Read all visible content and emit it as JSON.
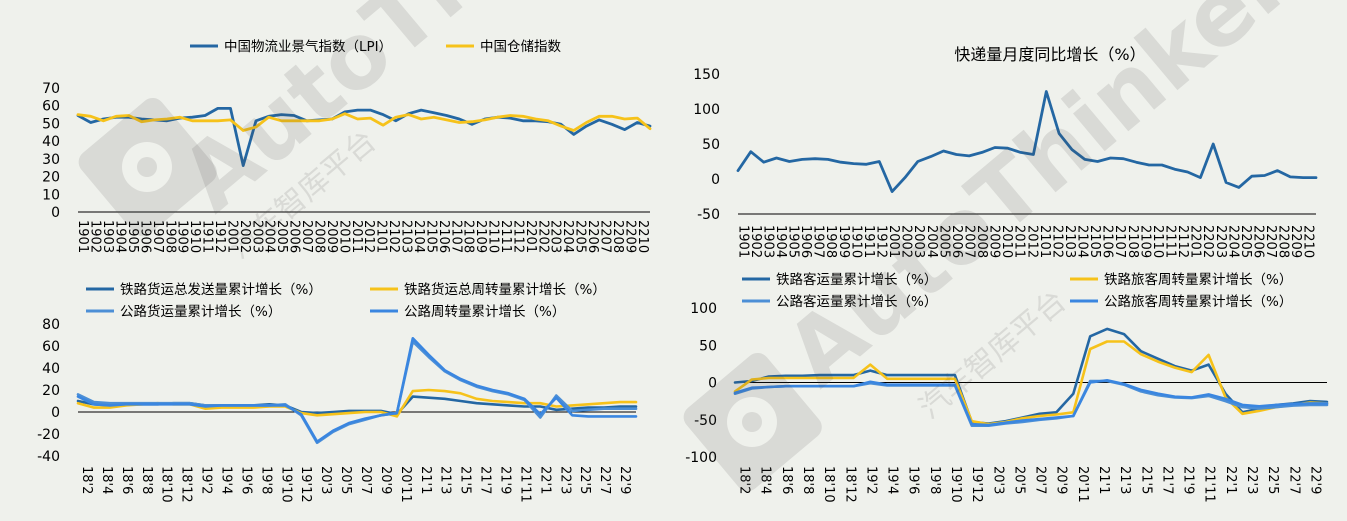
{
  "watermark": {
    "brand": "AutoThinker",
    "cn": "汽车智库平台"
  },
  "colors": {
    "dark_blue": "#2467a3",
    "gold": "#f6c21a",
    "light_blue": "#4c8fd6",
    "mid_blue": "#3a86e0",
    "axis": "#000000",
    "bg": "#eff1ec"
  },
  "chart_data": [
    {
      "id": "lpi",
      "type": "line",
      "title": "",
      "legend": [
        "中国物流业景气指数（LPI）",
        "中国仓储指数"
      ],
      "ylim": [
        0,
        70
      ],
      "yticks": [
        0,
        10,
        20,
        30,
        40,
        50,
        60,
        70
      ],
      "x_tick_labels": [
        "1901",
        "1902",
        "1903",
        "1904",
        "1905",
        "1906",
        "1907",
        "1908",
        "1909",
        "1910",
        "1911",
        "1912",
        "2001",
        "2002",
        "2003",
        "2004",
        "2005",
        "2006",
        "2007",
        "2008",
        "2009",
        "2010",
        "2011",
        "2012",
        "2101",
        "2102",
        "2103",
        "2104",
        "2105",
        "2106",
        "2107",
        "2108",
        "2109",
        "2110",
        "2111",
        "2112",
        "2201",
        "2202",
        "2203",
        "2204",
        "2205",
        "2206",
        "2207",
        "2208",
        "2209",
        "2210"
      ],
      "series": [
        {
          "name": "中国物流业景气指数（LPI）",
          "color_key": "dark_blue",
          "values": [
            54.5,
            50.5,
            52.5,
            53.5,
            53.5,
            52.5,
            52,
            51.5,
            53,
            53.5,
            54.5,
            58.5,
            58.5,
            26.2,
            51.5,
            54,
            55,
            54.5,
            51.5,
            52,
            52.5,
            56.5,
            57.5,
            57.5,
            55,
            51.5,
            55.5,
            57.5,
            56,
            54.5,
            52.5,
            49.5,
            52.5,
            53.5,
            53,
            51.5,
            51.5,
            51,
            49.5,
            43.8,
            48.5,
            52,
            49.5,
            46.5,
            50.5,
            48.5
          ]
        },
        {
          "name": "中国仓储指数",
          "color_key": "gold",
          "values": [
            55,
            54,
            51.5,
            54,
            54.5,
            51,
            52,
            52.5,
            53.5,
            51.5,
            51.5,
            51.5,
            52,
            46,
            48,
            53.5,
            51.5,
            51.5,
            51.5,
            51.5,
            52.5,
            55.5,
            52.5,
            53,
            49,
            53.5,
            55,
            52.5,
            53.5,
            52,
            50.5,
            51,
            52,
            53.5,
            54.5,
            54,
            52.5,
            51.5,
            48.5,
            46,
            50.5,
            54,
            54,
            52.5,
            53,
            47
          ]
        }
      ]
    },
    {
      "id": "express",
      "type": "line",
      "title": "快递量月度同比增长（%）",
      "legend": [],
      "ylim": [
        -50,
        150
      ],
      "yticks": [
        -50,
        0,
        50,
        100,
        150
      ],
      "x_tick_labels": [
        "1901",
        "1902",
        "1903",
        "1904",
        "1905",
        "1906",
        "1907",
        "1908",
        "1909",
        "1910",
        "1911",
        "1912",
        "2001",
        "2002",
        "2003",
        "2004",
        "2005",
        "2006",
        "2007",
        "2008",
        "2009",
        "2010",
        "2011",
        "2012",
        "2101",
        "2102",
        "2103",
        "2104",
        "2105",
        "2106",
        "2107",
        "2108",
        "2109",
        "2110",
        "2111",
        "2112",
        "2201",
        "2202",
        "2203",
        "2204",
        "2205",
        "2206",
        "2207",
        "2208",
        "2209",
        "2210"
      ],
      "series": [
        {
          "name": "",
          "color_key": "dark_blue",
          "values": [
            12,
            39,
            24,
            30,
            25,
            28,
            29,
            28,
            24,
            22,
            21,
            25,
            -18,
            2,
            25,
            32,
            40,
            35,
            33,
            38,
            45,
            44,
            38,
            35,
            125,
            65,
            42,
            28,
            25,
            30,
            29,
            24,
            20,
            20,
            14,
            10,
            2,
            50,
            -5,
            -12,
            4,
            5,
            12,
            3,
            2,
            2
          ]
        }
      ]
    },
    {
      "id": "freight",
      "type": "line",
      "title": "",
      "legend": [
        "铁路货运总发送量累计增长（%）",
        "铁路货运总周转量累计增长（%）",
        "公路货运量累计增长（%）",
        "公路周转量累计增长（%）"
      ],
      "ylim": [
        -40,
        80
      ],
      "yticks": [
        -40,
        -20,
        0,
        20,
        40,
        60,
        80
      ],
      "x_tick_labels": [
        "18'2",
        "18'4",
        "18'6",
        "18'8",
        "18'10",
        "18'12",
        "19'2",
        "19'4",
        "19'6",
        "19'8",
        "19'10",
        "19'12",
        "20'3",
        "20'5",
        "20'7",
        "20'9",
        "20'11",
        "21'1",
        "21'3",
        "21'5",
        "21'7",
        "21'9",
        "21'11",
        "22'1",
        "22'3",
        "22'5",
        "22'7",
        "22'9"
      ],
      "series": [
        {
          "name": "铁路货运总发送量累计增长（%）",
          "color_key": "dark_blue",
          "values": [
            10,
            7,
            6,
            7,
            7,
            7,
            8,
            8,
            6,
            6,
            6,
            6,
            7,
            6,
            0,
            -1,
            0,
            1,
            1,
            1,
            -2,
            14,
            13,
            12,
            10,
            8,
            7,
            6,
            5,
            5,
            2,
            3,
            4,
            4,
            5,
            5
          ]
        },
        {
          "name": "铁路货运总周转量累计增长（%）",
          "color_key": "gold",
          "values": [
            8,
            4,
            4,
            6,
            7,
            8,
            7,
            7,
            3,
            4,
            4,
            4,
            5,
            5,
            -1,
            -3,
            -2,
            -1,
            0,
            0,
            -4,
            19,
            20,
            19,
            17,
            12,
            10,
            9,
            8,
            8,
            5,
            6,
            7,
            8,
            9,
            9
          ]
        },
        {
          "name": "公路货运量累计增长（%）",
          "color_key": "light_blue",
          "values": [
            16,
            9,
            8,
            8,
            8,
            8,
            8,
            8,
            6,
            6,
            6,
            6,
            6,
            7,
            -3,
            -28,
            -18,
            -11,
            -7,
            -3,
            -1,
            64,
            50,
            37,
            29,
            23,
            19,
            16,
            11,
            -5,
            15,
            1,
            2,
            3,
            3,
            3
          ]
        },
        {
          "name": "公路周转量累计增长（%）",
          "color_key": "mid_blue",
          "values": [
            14,
            7,
            6,
            7,
            7,
            7,
            7,
            7,
            5,
            6,
            6,
            6,
            6,
            6,
            -2,
            -27,
            -17,
            -10,
            -6,
            -3,
            -1,
            67,
            52,
            38,
            30,
            24,
            20,
            17,
            12,
            -2,
            13,
            -3,
            -4,
            -4,
            -4,
            -4
          ]
        }
      ]
    },
    {
      "id": "passenger",
      "type": "line",
      "title": "",
      "legend": [
        "铁路客运量累计增长（%）",
        "铁路旅客周转量累计增长（%）",
        "公路客运量累计增长（%）",
        "公路旅客周转量累计增长（%）"
      ],
      "ylim": [
        -100,
        100
      ],
      "yticks": [
        -100,
        -50,
        0,
        50,
        100
      ],
      "x_tick_labels": [
        "18'2",
        "18'4",
        "18'6",
        "18'8",
        "18'10",
        "18'12",
        "19'2",
        "19'4",
        "19'6",
        "19'8",
        "19'10",
        "19'12",
        "20'3",
        "20'5",
        "20'7",
        "20'9",
        "20'11",
        "21'1",
        "21'3",
        "21'5",
        "21'7",
        "21'9",
        "21'11",
        "22'1",
        "22'3",
        "22'5",
        "22'7",
        "22'9"
      ],
      "series": [
        {
          "name": "铁路客运量累计增长（%）",
          "color_key": "dark_blue",
          "values": [
            0,
            2,
            8,
            9,
            9,
            10,
            10,
            10,
            16,
            10,
            10,
            10,
            10,
            10,
            -53,
            -55,
            -52,
            -47,
            -42,
            -40,
            -15,
            62,
            72,
            65,
            42,
            32,
            22,
            16,
            24,
            -15,
            -40,
            -35,
            -30,
            -28,
            -25,
            -26
          ]
        },
        {
          "name": "铁路旅客周转量累计增长（%）",
          "color_key": "gold",
          "values": [
            -12,
            4,
            6,
            6,
            6,
            6,
            6,
            6,
            24,
            5,
            5,
            5,
            5,
            5,
            -52,
            -56,
            -53,
            -48,
            -45,
            -43,
            -40,
            45,
            55,
            55,
            38,
            28,
            20,
            14,
            37,
            -20,
            -42,
            -38,
            -33,
            -30,
            -27,
            -28
          ]
        },
        {
          "name": "公路客运量累计增长（%）",
          "color_key": "light_blue",
          "values": [
            -15,
            -8,
            -6,
            -5,
            -5,
            -5,
            -5,
            -5,
            -1,
            -4,
            -4,
            -4,
            -4,
            -4,
            -58,
            -58,
            -55,
            -53,
            -50,
            -48,
            -45,
            2,
            2,
            -3,
            -12,
            -17,
            -20,
            -21,
            -18,
            -25,
            -33,
            -35,
            -33,
            -31,
            -30,
            -30
          ]
        },
        {
          "name": "公路旅客周转量累计增长（%）",
          "color_key": "mid_blue",
          "values": [
            -14,
            -7,
            -6,
            -5,
            -5,
            -5,
            -5,
            -5,
            1,
            -3,
            -3,
            -3,
            -3,
            -3,
            -56,
            -57,
            -54,
            -51,
            -49,
            -47,
            -45,
            0,
            3,
            -2,
            -10,
            -15,
            -19,
            -20,
            -16,
            -22,
            -30,
            -32,
            -30,
            -29,
            -28,
            -28
          ]
        }
      ]
    }
  ]
}
